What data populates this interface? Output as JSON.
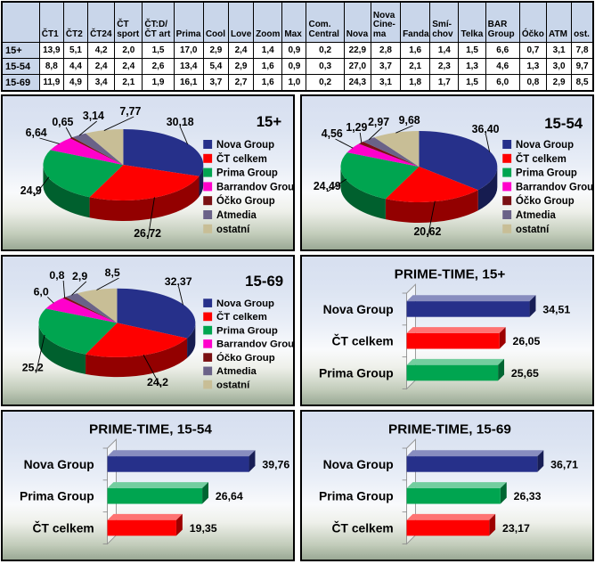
{
  "table": {
    "corner": "",
    "columns": [
      "ČT1",
      "ČT2",
      "ČT24",
      "ČT\nsport",
      "ČT:D/\nČT art",
      "Prima",
      "Cool",
      "Love",
      "Zoom",
      "Max",
      "Com.\nCentral",
      "Nova",
      "Nova\nCine-\nma",
      "Fanda",
      "Smí-\nchov",
      "Telka",
      "BAR\nGroup",
      "Óčko",
      "ATM",
      "ost."
    ],
    "rows": [
      {
        "label": "15+",
        "values": [
          "13,9",
          "5,1",
          "4,2",
          "2,0",
          "1,5",
          "17,0",
          "2,9",
          "2,4",
          "1,4",
          "0,9",
          "0,2",
          "22,9",
          "2,8",
          "1,6",
          "1,4",
          "1,5",
          "6,6",
          "0,7",
          "3,1",
          "7,8"
        ]
      },
      {
        "label": "15-54",
        "values": [
          "8,8",
          "4,4",
          "2,4",
          "2,4",
          "2,6",
          "13,4",
          "5,4",
          "2,9",
          "1,6",
          "0,9",
          "0,3",
          "27,0",
          "3,7",
          "2,1",
          "2,3",
          "1,3",
          "4,6",
          "1,3",
          "3,0",
          "9,7"
        ]
      },
      {
        "label": "15-69",
        "values": [
          "11,9",
          "4,9",
          "3,4",
          "2,1",
          "1,9",
          "16,1",
          "3,7",
          "2,7",
          "1,6",
          "1,0",
          "0,2",
          "24,3",
          "3,1",
          "1,8",
          "1,7",
          "1,5",
          "6,0",
          "0,8",
          "2,9",
          "8,5"
        ]
      }
    ]
  },
  "colors": {
    "nova_group": "#26308a",
    "ct_celkem": "#fe0000",
    "prima_group": "#00a550",
    "barrandov_group": "#ff00cb",
    "ocko_group": "#7a1013",
    "atmedia": "#6a6288",
    "ostatni": "#c8be96",
    "table_header_bg": "#c9d6ea"
  },
  "chart_data": [
    {
      "type": "pie",
      "title": "15+",
      "legend_position": "right",
      "legend": [
        "Nova Group",
        "ČT celkem",
        "Prima Group",
        "Barrandov Group",
        "Óčko Group",
        "Atmedia",
        "ostatní"
      ],
      "values": [
        30.18,
        26.72,
        24.9,
        6.64,
        0.65,
        3.14,
        7.77
      ],
      "value_labels": [
        "30,18",
        "26,72",
        "24,9",
        "6,64",
        "0,65",
        "3,14",
        "7,77"
      ],
      "colors": [
        "#26308a",
        "#fe0000",
        "#00a550",
        "#ff00cb",
        "#7a1013",
        "#6a6288",
        "#c8be96"
      ]
    },
    {
      "type": "pie",
      "title": "15-54",
      "legend_position": "right",
      "legend": [
        "Nova Group",
        "ČT celkem",
        "Prima Group",
        "Barrandov Group",
        "Óčko Group",
        "Atmedia",
        "ostatní"
      ],
      "values": [
        36.4,
        20.62,
        24.49,
        4.56,
        1.29,
        2.97,
        9.68
      ],
      "value_labels": [
        "36,40",
        "20,62",
        "24,49",
        "4,56",
        "1,29",
        "2,97",
        "9,68"
      ],
      "colors": [
        "#26308a",
        "#fe0000",
        "#00a550",
        "#ff00cb",
        "#7a1013",
        "#6a6288",
        "#c8be96"
      ]
    },
    {
      "type": "pie",
      "title": "15-69",
      "legend_position": "right",
      "legend": [
        "Nova Group",
        "ČT celkem",
        "Prima Group",
        "Barrandov Group",
        "Óčko Group",
        "Atmedia",
        "ostatní"
      ],
      "values": [
        32.37,
        24.2,
        25.2,
        6.0,
        0.8,
        2.9,
        8.5
      ],
      "value_labels": [
        "32,37",
        "24,2",
        "25,2",
        "6,0",
        "0,8",
        "2,9",
        "8,5"
      ],
      "colors": [
        "#26308a",
        "#fe0000",
        "#00a550",
        "#ff00cb",
        "#7a1013",
        "#6a6288",
        "#c8be96"
      ]
    },
    {
      "type": "bar",
      "title": "PRIME-TIME, 15+",
      "orientation": "horizontal",
      "grid": false,
      "categories": [
        "Nova Group",
        "ČT celkem",
        "Prima Group"
      ],
      "values": [
        34.51,
        26.05,
        25.65
      ],
      "value_labels": [
        "34,51",
        "26,05",
        "25,65"
      ],
      "colors": [
        "#26308a",
        "#fe0000",
        "#00a550"
      ],
      "xlim": [
        0,
        42
      ]
    },
    {
      "type": "bar",
      "title": "PRIME-TIME, 15-54",
      "orientation": "horizontal",
      "grid": false,
      "categories": [
        "Nova Group",
        "Prima Group",
        "ČT celkem"
      ],
      "values": [
        39.76,
        26.64,
        19.35
      ],
      "value_labels": [
        "39,76",
        "26,64",
        "19,35"
      ],
      "colors": [
        "#26308a",
        "#00a550",
        "#fe0000"
      ],
      "xlim": [
        0,
        42
      ]
    },
    {
      "type": "bar",
      "title": "PRIME-TIME, 15-69",
      "orientation": "horizontal",
      "grid": false,
      "categories": [
        "Nova Group",
        "Prima Group",
        "ČT celkem"
      ],
      "values": [
        36.71,
        26.33,
        23.17
      ],
      "value_labels": [
        "36,71",
        "26,33",
        "23,17"
      ],
      "colors": [
        "#26308a",
        "#00a550",
        "#fe0000"
      ],
      "xlim": [
        0,
        42
      ]
    }
  ]
}
